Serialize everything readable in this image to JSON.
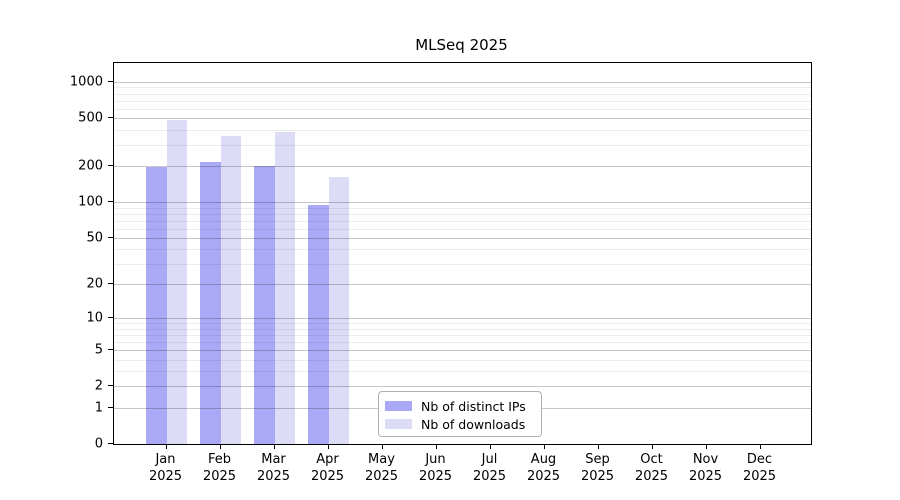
{
  "chart_data": {
    "type": "grouped_bar",
    "title": "MLSeq 2025",
    "scale": "log1p",
    "grid": "horizontal",
    "legend_position": "lower-center",
    "categories": [
      "Jan",
      "Feb",
      "Mar",
      "Apr",
      "May",
      "Jun",
      "Jul",
      "Aug",
      "Sep",
      "Oct",
      "Nov",
      "Dec"
    ],
    "category_sublabel": "2025",
    "series": [
      {
        "name": "Nb of distinct IPs",
        "color": "#a9a9f5",
        "values": [
          197,
          215,
          201,
          95,
          0,
          0,
          0,
          0,
          0,
          0,
          0,
          0
        ]
      },
      {
        "name": "Nb of downloads",
        "color": "#dcdcf6",
        "values": [
          487,
          355,
          387,
          161,
          0,
          0,
          0,
          0,
          0,
          0,
          0,
          0
        ]
      }
    ],
    "y_major_ticks": [
      0,
      1,
      2,
      5,
      10,
      20,
      50,
      100,
      200,
      500,
      1000
    ],
    "y_minor_ticks": [
      3,
      4,
      6,
      7,
      8,
      9,
      30,
      40,
      60,
      70,
      80,
      90,
      300,
      400,
      600,
      700,
      800,
      900
    ],
    "ylim": [
      0,
      1430
    ]
  }
}
